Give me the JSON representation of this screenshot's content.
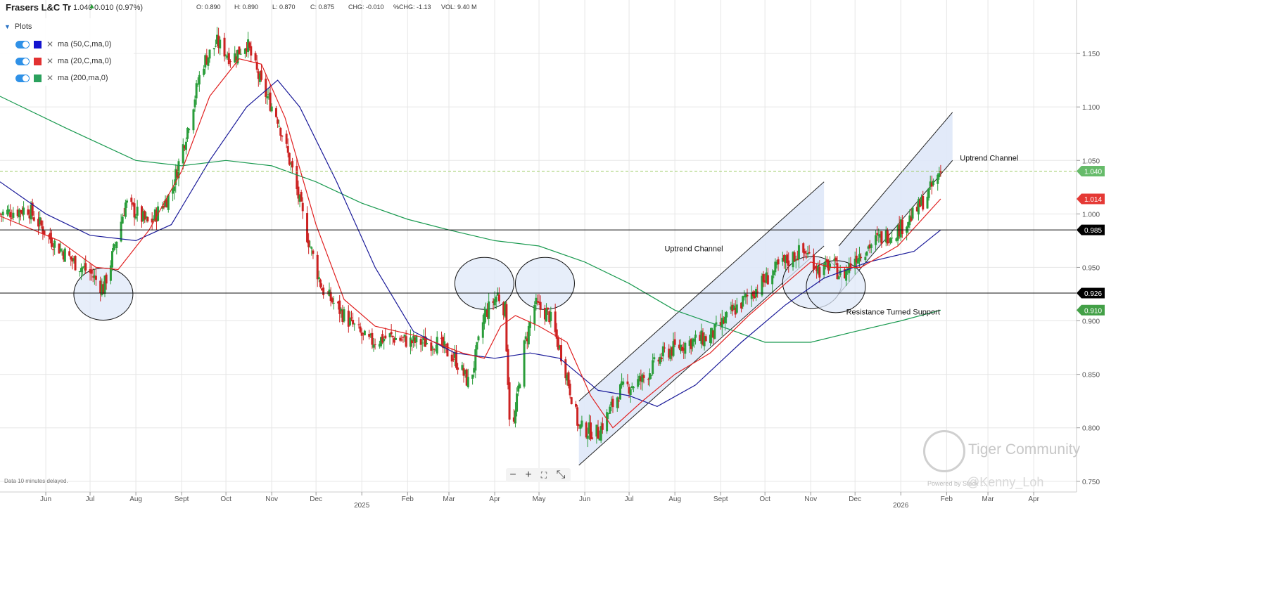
{
  "header": {
    "instrument": "Frasers L&C Tr",
    "last_price": "1.040",
    "change": "0.010 (0.97%)",
    "open": "O: 0.890",
    "high": "H: 0.890",
    "low": "L: 0.870",
    "close": "C: 0.875",
    "chg": "CHG: -0.010",
    "pct_chg": "%CHG: -1.13",
    "vol": "VOL: 9.40 M"
  },
  "plots_panel": {
    "title": "Plots",
    "items": [
      {
        "label": "ma (50,C,ma,0)",
        "color": "#0000cc"
      },
      {
        "label": "ma (20,C,ma,0)",
        "color": "#e02020"
      },
      {
        "label": "ma (200,ma,0)",
        "color": "#1a9a50"
      }
    ]
  },
  "footer": {
    "delayed": "Data 10 minutes delayed.",
    "powered": "Powered by Stock ... ",
    "watermark": "Tiger Community",
    "watermark_user": "@Kenny_Loh"
  },
  "colors": {
    "candle_up": "#2a9d3a",
    "candle_down": "#cc2222",
    "ma20": "#e02020",
    "ma50": "#1a1a99",
    "ma200": "#1a9a50",
    "channel_fill": "#dfe8f8",
    "circle_fill": "#dfe8f8"
  },
  "chart_data": {
    "type": "candlestick",
    "title": "Frasers L&C Tr",
    "ylim": [
      0.74,
      1.2
    ],
    "y_ticks": [
      "0.750",
      "0.800",
      "0.850",
      "0.900",
      "0.950",
      "1.000",
      "1.050",
      "1.100",
      "1.150"
    ],
    "y_tick_values": [
      0.75,
      0.8,
      0.85,
      0.9,
      0.95,
      1.0,
      1.05,
      1.1,
      1.15
    ],
    "x_range": [
      "2024-05-01",
      "2026-04-30"
    ],
    "x_ticks": [
      {
        "label": "Jun",
        "date": "2024-06-01"
      },
      {
        "label": "Jul",
        "date": "2024-07-01"
      },
      {
        "label": "Aug",
        "date": "2024-08-01"
      },
      {
        "label": "Sept",
        "date": "2024-09-01"
      },
      {
        "label": "Oct",
        "date": "2024-10-01"
      },
      {
        "label": "Nov",
        "date": "2024-11-01"
      },
      {
        "label": "Dec",
        "date": "2024-12-01"
      },
      {
        "label": "2025",
        "date": "2025-01-01"
      },
      {
        "label": "Feb",
        "date": "2025-02-01"
      },
      {
        "label": "Mar",
        "date": "2025-03-01"
      },
      {
        "label": "Apr",
        "date": "2025-04-01"
      },
      {
        "label": "May",
        "date": "2025-05-01"
      },
      {
        "label": "Jun",
        "date": "2025-06-01"
      },
      {
        "label": "Jul",
        "date": "2025-07-01"
      },
      {
        "label": "Aug",
        "date": "2025-08-01"
      },
      {
        "label": "Sept",
        "date": "2025-09-01"
      },
      {
        "label": "Oct",
        "date": "2025-10-01"
      },
      {
        "label": "Nov",
        "date": "2025-11-01"
      },
      {
        "label": "Dec",
        "date": "2025-12-01"
      },
      {
        "label": "2026",
        "date": "2026-01-01"
      },
      {
        "label": "Feb",
        "date": "2026-02-01"
      },
      {
        "label": "Mar",
        "date": "2026-03-01"
      },
      {
        "label": "Apr",
        "date": "2026-04-01"
      }
    ],
    "close_path": [
      [
        "2024-05-01",
        1.0
      ],
      [
        "2024-05-20",
        1.005
      ],
      [
        "2024-06-05",
        0.975
      ],
      [
        "2024-06-20",
        0.955
      ],
      [
        "2024-07-01",
        0.945
      ],
      [
        "2024-07-10",
        0.93
      ],
      [
        "2024-07-16",
        0.96
      ],
      [
        "2024-07-25",
        1.01
      ],
      [
        "2024-08-10",
        0.99
      ],
      [
        "2024-08-25",
        1.02
      ],
      [
        "2024-09-05",
        1.08
      ],
      [
        "2024-09-15",
        1.14
      ],
      [
        "2024-09-25",
        1.16
      ],
      [
        "2024-10-05",
        1.145
      ],
      [
        "2024-10-15",
        1.16
      ],
      [
        "2024-10-25",
        1.12
      ],
      [
        "2024-11-05",
        1.09
      ],
      [
        "2024-11-15",
        1.04
      ],
      [
        "2024-11-25",
        0.98
      ],
      [
        "2024-12-05",
        0.93
      ],
      [
        "2024-12-20",
        0.905
      ],
      [
        "2025-01-05",
        0.88
      ],
      [
        "2025-01-20",
        0.885
      ],
      [
        "2025-02-05",
        0.88
      ],
      [
        "2025-02-20",
        0.88
      ],
      [
        "2025-03-05",
        0.865
      ],
      [
        "2025-03-15",
        0.84
      ],
      [
        "2025-03-25",
        0.905
      ],
      [
        "2025-04-03",
        0.925
      ],
      [
        "2025-04-08",
        0.91
      ],
      [
        "2025-04-12",
        0.78
      ],
      [
        "2025-04-20",
        0.87
      ],
      [
        "2025-04-28",
        0.915
      ],
      [
        "2025-05-08",
        0.905
      ],
      [
        "2025-05-18",
        0.86
      ],
      [
        "2025-05-28",
        0.8
      ],
      [
        "2025-06-10",
        0.795
      ],
      [
        "2025-06-25",
        0.835
      ],
      [
        "2025-07-10",
        0.845
      ],
      [
        "2025-07-25",
        0.87
      ],
      [
        "2025-08-10",
        0.88
      ],
      [
        "2025-08-25",
        0.885
      ],
      [
        "2025-09-10",
        0.91
      ],
      [
        "2025-09-25",
        0.93
      ],
      [
        "2025-10-10",
        0.95
      ],
      [
        "2025-10-25",
        0.965
      ],
      [
        "2025-11-01",
        0.96
      ],
      [
        "2025-11-08",
        0.945
      ],
      [
        "2025-11-15",
        0.955
      ],
      [
        "2025-11-22",
        0.94
      ],
      [
        "2025-12-01",
        0.96
      ],
      [
        "2025-12-15",
        0.975
      ],
      [
        "2025-12-30",
        0.985
      ],
      [
        "2026-01-10",
        1.0
      ],
      [
        "2026-01-20",
        1.02
      ],
      [
        "2026-01-28",
        1.04
      ]
    ],
    "ma20": [
      [
        "2024-05-01",
        0.998
      ],
      [
        "2024-06-10",
        0.975
      ],
      [
        "2024-07-05",
        0.95
      ],
      [
        "2024-07-20",
        0.948
      ],
      [
        "2024-08-10",
        0.985
      ],
      [
        "2024-09-01",
        1.04
      ],
      [
        "2024-09-20",
        1.11
      ],
      [
        "2024-10-10",
        1.145
      ],
      [
        "2024-10-25",
        1.14
      ],
      [
        "2024-11-10",
        1.09
      ],
      [
        "2024-12-01",
        0.99
      ],
      [
        "2024-12-20",
        0.92
      ],
      [
        "2025-01-10",
        0.895
      ],
      [
        "2025-02-10",
        0.885
      ],
      [
        "2025-03-10",
        0.87
      ],
      [
        "2025-03-25",
        0.865
      ],
      [
        "2025-04-05",
        0.895
      ],
      [
        "2025-04-15",
        0.905
      ],
      [
        "2025-05-01",
        0.895
      ],
      [
        "2025-05-20",
        0.88
      ],
      [
        "2025-06-05",
        0.83
      ],
      [
        "2025-06-20",
        0.8
      ],
      [
        "2025-07-10",
        0.825
      ],
      [
        "2025-08-01",
        0.85
      ],
      [
        "2025-08-25",
        0.87
      ],
      [
        "2025-09-20",
        0.905
      ],
      [
        "2025-10-15",
        0.935
      ],
      [
        "2025-11-01",
        0.955
      ],
      [
        "2025-11-15",
        0.95
      ],
      [
        "2025-12-05",
        0.95
      ],
      [
        "2025-12-30",
        0.97
      ],
      [
        "2026-01-28",
        1.014
      ]
    ],
    "ma50": [
      [
        "2024-05-01",
        1.03
      ],
      [
        "2024-06-01",
        1.0
      ],
      [
        "2024-07-01",
        0.98
      ],
      [
        "2024-08-01",
        0.975
      ],
      [
        "2024-08-25",
        0.99
      ],
      [
        "2024-09-20",
        1.05
      ],
      [
        "2024-10-15",
        1.1
      ],
      [
        "2024-11-05",
        1.125
      ],
      [
        "2024-11-20",
        1.1
      ],
      [
        "2024-12-15",
        1.03
      ],
      [
        "2025-01-10",
        0.95
      ],
      [
        "2025-02-05",
        0.89
      ],
      [
        "2025-03-05",
        0.87
      ],
      [
        "2025-04-01",
        0.865
      ],
      [
        "2025-04-25",
        0.87
      ],
      [
        "2025-05-15",
        0.865
      ],
      [
        "2025-06-10",
        0.835
      ],
      [
        "2025-07-01",
        0.83
      ],
      [
        "2025-07-20",
        0.82
      ],
      [
        "2025-08-15",
        0.84
      ],
      [
        "2025-09-15",
        0.88
      ],
      [
        "2025-10-15",
        0.915
      ],
      [
        "2025-11-10",
        0.94
      ],
      [
        "2025-12-10",
        0.955
      ],
      [
        "2026-01-10",
        0.965
      ],
      [
        "2026-01-28",
        0.985
      ]
    ],
    "ma200": [
      [
        "2024-05-01",
        1.11
      ],
      [
        "2024-06-15",
        1.08
      ],
      [
        "2024-08-01",
        1.05
      ],
      [
        "2024-09-01",
        1.045
      ],
      [
        "2024-10-01",
        1.05
      ],
      [
        "2024-11-01",
        1.045
      ],
      [
        "2024-12-01",
        1.03
      ],
      [
        "2025-01-01",
        1.01
      ],
      [
        "2025-02-01",
        0.995
      ],
      [
        "2025-03-01",
        0.985
      ],
      [
        "2025-04-01",
        0.975
      ],
      [
        "2025-05-01",
        0.97
      ],
      [
        "2025-06-01",
        0.955
      ],
      [
        "2025-07-01",
        0.935
      ],
      [
        "2025-08-01",
        0.91
      ],
      [
        "2025-09-01",
        0.895
      ],
      [
        "2025-10-01",
        0.88
      ],
      [
        "2025-11-01",
        0.88
      ],
      [
        "2025-12-01",
        0.89
      ],
      [
        "2026-01-01",
        0.9
      ],
      [
        "2026-01-28",
        0.91
      ]
    ],
    "horizontal_lines": [
      {
        "value": 0.985,
        "label": "0.985"
      },
      {
        "value": 0.926,
        "label": "0.926"
      }
    ],
    "last_price_line": 1.04,
    "price_tags": [
      {
        "label": "1.040",
        "value": 1.04,
        "color": "#66bb6a"
      },
      {
        "label": "1.014",
        "value": 1.014,
        "color": "#e53935"
      },
      {
        "label": "0.985",
        "value": 0.985,
        "color": "#000000"
      },
      {
        "label": "0.926",
        "value": 0.926,
        "color": "#000000"
      },
      {
        "label": "0.910",
        "value": 0.91,
        "color": "#43a047"
      }
    ],
    "channels": [
      {
        "label": "Uptrend Channel",
        "lower_start": [
          "2025-05-28",
          0.765
        ],
        "lower_end": [
          "2025-11-10",
          0.97
        ],
        "upper_start": [
          "2025-05-28",
          0.825
        ],
        "upper_end": [
          "2025-11-10",
          1.03
        ]
      },
      {
        "label": "Uptrend Channel",
        "lower_start": [
          "2025-11-20",
          0.925
        ],
        "lower_end": [
          "2026-02-05",
          1.05
        ],
        "upper_start": [
          "2025-11-20",
          0.97
        ],
        "upper_end": [
          "2026-02-05",
          1.095
        ]
      }
    ],
    "circles": [
      {
        "date": "2024-07-10",
        "price": 0.925
      },
      {
        "date": "2025-03-25",
        "price": 0.935
      },
      {
        "date": "2025-05-05",
        "price": 0.935
      },
      {
        "date": "2025-11-02",
        "price": 0.936
      },
      {
        "date": "2025-11-18",
        "price": 0.932
      }
    ],
    "annotations": [
      {
        "text": "Uptrend Channel",
        "date": "2025-07-25",
        "price": 0.965
      },
      {
        "text": "Uptrend Channel",
        "date": "2026-02-10",
        "price": 1.05
      },
      {
        "text": "Resistance Turned Support",
        "date": "2025-11-25",
        "price": 0.906
      }
    ]
  }
}
